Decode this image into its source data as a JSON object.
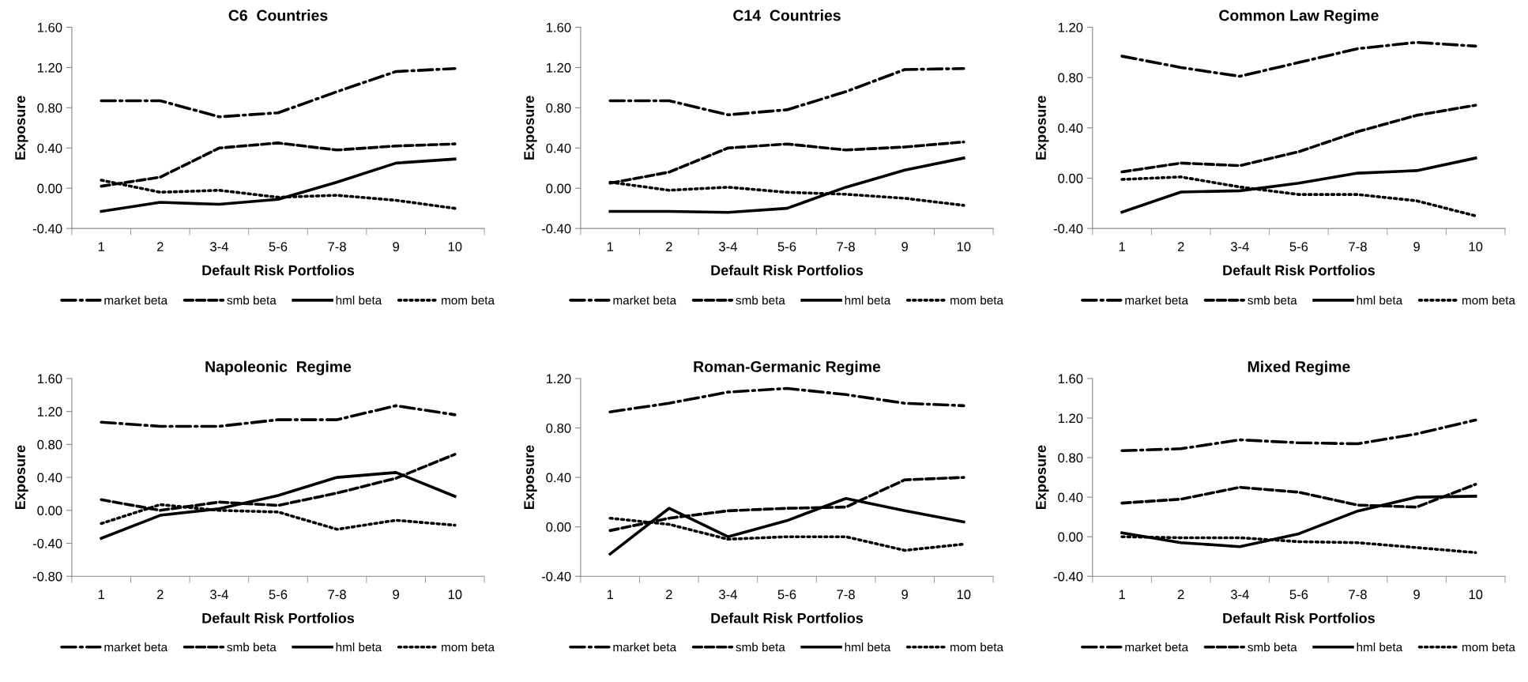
{
  "chart_data": [
    {
      "type": "line",
      "title": "C6  Countries",
      "xlabel": "Default Risk Portfolios",
      "ylabel": "Exposure",
      "categories": [
        "1",
        "2",
        "3-4",
        "5-6",
        "7-8",
        "9",
        "10"
      ],
      "ylim": [
        -0.4,
        1.6
      ],
      "yticks": [
        {
          "value": -0.4,
          "label": "-0.40"
        },
        {
          "value": 0,
          "label": "0.00"
        },
        {
          "value": 0.4,
          "label": "0.40"
        },
        {
          "value": 0.8,
          "label": "0.80"
        },
        {
          "value": 1.2,
          "label": "1.20"
        },
        {
          "value": 1.6,
          "label": "1.60"
        }
      ],
      "legend": "bottom",
      "grid": false,
      "series": [
        {
          "name": "market beta",
          "color": "#000000",
          "line_style": "dashdot",
          "values": [
            0.87,
            0.87,
            0.71,
            0.75,
            0.96,
            1.16,
            1.19
          ]
        },
        {
          "name": "smb beta",
          "color": "#000000",
          "line_style": "dashed",
          "values": [
            0.02,
            0.11,
            0.4,
            0.45,
            0.38,
            0.42,
            0.44
          ]
        },
        {
          "name": "hml beta",
          "color": "#000000",
          "line_style": "solid",
          "values": [
            -0.23,
            -0.14,
            -0.16,
            -0.11,
            0.06,
            0.25,
            0.29
          ]
        },
        {
          "name": "mom beta",
          "color": "#000000",
          "line_style": "dotted",
          "values": [
            0.08,
            -0.04,
            -0.02,
            -0.09,
            -0.07,
            -0.12,
            -0.2
          ]
        }
      ]
    },
    {
      "type": "line",
      "title": "C14  Countries",
      "xlabel": "Default Risk Portfolios",
      "ylabel": "Exposure",
      "categories": [
        "1",
        "2",
        "3-4",
        "5-6",
        "7-8",
        "9",
        "10"
      ],
      "ylim": [
        -0.4,
        1.6
      ],
      "yticks": [
        {
          "value": -0.4,
          "label": "-0.40"
        },
        {
          "value": 0,
          "label": "0.00"
        },
        {
          "value": 0.4,
          "label": "0.40"
        },
        {
          "value": 0.8,
          "label": "0.80"
        },
        {
          "value": 1.2,
          "label": "1.20"
        },
        {
          "value": 1.6,
          "label": "1.60"
        }
      ],
      "legend": "bottom",
      "grid": false,
      "series": [
        {
          "name": "market beta",
          "color": "#000000",
          "line_style": "dashdot",
          "values": [
            0.87,
            0.87,
            0.73,
            0.78,
            0.96,
            1.18,
            1.19
          ]
        },
        {
          "name": "smb beta",
          "color": "#000000",
          "line_style": "dashed",
          "values": [
            0.05,
            0.16,
            0.4,
            0.44,
            0.38,
            0.41,
            0.46
          ]
        },
        {
          "name": "hml beta",
          "color": "#000000",
          "line_style": "solid",
          "values": [
            -0.23,
            -0.23,
            -0.24,
            -0.2,
            0.01,
            0.18,
            0.3
          ]
        },
        {
          "name": "mom beta",
          "color": "#000000",
          "line_style": "dotted",
          "values": [
            0.06,
            -0.02,
            0.01,
            -0.04,
            -0.06,
            -0.1,
            -0.17
          ]
        }
      ]
    },
    {
      "type": "line",
      "title": "Common Law Regime",
      "xlabel": "Default Risk Portfolios",
      "ylabel": "Exposure",
      "categories": [
        "1",
        "2",
        "3-4",
        "5-6",
        "7-8",
        "9",
        "10"
      ],
      "ylim": [
        -0.4,
        1.2
      ],
      "yticks": [
        {
          "value": -0.4,
          "label": "-0.40"
        },
        {
          "value": 0,
          "label": "0.00"
        },
        {
          "value": 0.4,
          "label": "0.40"
        },
        {
          "value": 0.8,
          "label": "0.80"
        },
        {
          "value": 1.2,
          "label": "1.20"
        }
      ],
      "legend": "bottom",
      "grid": false,
      "series": [
        {
          "name": "market beta",
          "color": "#000000",
          "line_style": "dashdot",
          "values": [
            0.97,
            0.88,
            0.81,
            0.92,
            1.03,
            1.08,
            1.05
          ]
        },
        {
          "name": "smb beta",
          "color": "#000000",
          "line_style": "dashed",
          "values": [
            0.05,
            0.12,
            0.1,
            0.21,
            0.37,
            0.5,
            0.58
          ]
        },
        {
          "name": "hml beta",
          "color": "#000000",
          "line_style": "solid",
          "values": [
            -0.27,
            -0.11,
            -0.1,
            -0.04,
            0.04,
            0.06,
            0.16
          ]
        },
        {
          "name": "mom beta",
          "color": "#000000",
          "line_style": "dotted",
          "values": [
            -0.01,
            0.01,
            -0.07,
            -0.13,
            -0.13,
            -0.18,
            -0.3
          ]
        }
      ]
    },
    {
      "type": "line",
      "title": "Napoleonic  Regime",
      "xlabel": "Default Risk Portfolios",
      "ylabel": "Exposure",
      "categories": [
        "1",
        "2",
        "3-4",
        "5-6",
        "7-8",
        "9",
        "10"
      ],
      "ylim": [
        -0.8,
        1.6
      ],
      "yticks": [
        {
          "value": -0.8,
          "label": "-0.80"
        },
        {
          "value": -0.4,
          "label": "-0.40"
        },
        {
          "value": 0,
          "label": "0.00"
        },
        {
          "value": 0.4,
          "label": "0.40"
        },
        {
          "value": 0.8,
          "label": "0.80"
        },
        {
          "value": 1.2,
          "label": "1.20"
        },
        {
          "value": 1.6,
          "label": "1.60"
        }
      ],
      "legend": "bottom",
      "grid": false,
      "series": [
        {
          "name": "market beta",
          "color": "#000000",
          "line_style": "dashdot",
          "values": [
            1.07,
            1.02,
            1.02,
            1.1,
            1.1,
            1.27,
            1.16
          ]
        },
        {
          "name": "smb beta",
          "color": "#000000",
          "line_style": "dashed",
          "values": [
            0.13,
            0.0,
            0.1,
            0.06,
            0.21,
            0.39,
            0.68
          ]
        },
        {
          "name": "hml beta",
          "color": "#000000",
          "line_style": "solid",
          "values": [
            -0.34,
            -0.06,
            0.02,
            0.18,
            0.4,
            0.46,
            0.17
          ]
        },
        {
          "name": "mom beta",
          "color": "#000000",
          "line_style": "dotted",
          "values": [
            -0.16,
            0.07,
            0.0,
            -0.02,
            -0.23,
            -0.12,
            -0.18
          ]
        }
      ]
    },
    {
      "type": "line",
      "title": "Roman-Germanic Regime",
      "xlabel": "Default Risk Portfolios",
      "ylabel": "Exposure",
      "categories": [
        "1",
        "2",
        "3-4",
        "5-6",
        "7-8",
        "9",
        "10"
      ],
      "ylim": [
        -0.4,
        1.2
      ],
      "yticks": [
        {
          "value": -0.4,
          "label": "-0.40"
        },
        {
          "value": 0,
          "label": "0.00"
        },
        {
          "value": 0.4,
          "label": "0.40"
        },
        {
          "value": 0.8,
          "label": "0.80"
        },
        {
          "value": 1.2,
          "label": "1.20"
        }
      ],
      "legend": "bottom",
      "grid": false,
      "series": [
        {
          "name": "market beta",
          "color": "#000000",
          "line_style": "dashdot",
          "values": [
            0.93,
            1.0,
            1.09,
            1.12,
            1.07,
            1.0,
            0.98
          ]
        },
        {
          "name": "smb beta",
          "color": "#000000",
          "line_style": "dashed",
          "values": [
            -0.03,
            0.07,
            0.13,
            0.15,
            0.16,
            0.38,
            0.4
          ]
        },
        {
          "name": "hml beta",
          "color": "#000000",
          "line_style": "solid",
          "values": [
            -0.22,
            0.15,
            -0.08,
            0.05,
            0.23,
            0.13,
            0.04
          ]
        },
        {
          "name": "mom beta",
          "color": "#000000",
          "line_style": "dotted",
          "values": [
            0.07,
            0.02,
            -0.1,
            -0.08,
            -0.08,
            -0.19,
            -0.14
          ]
        }
      ]
    },
    {
      "type": "line",
      "title": "Mixed Regime",
      "xlabel": "Default Risk Portfolios",
      "ylabel": "Exposure",
      "categories": [
        "1",
        "2",
        "3-4",
        "5-6",
        "7-8",
        "9",
        "10"
      ],
      "ylim": [
        -0.4,
        1.6
      ],
      "yticks": [
        {
          "value": -0.4,
          "label": "-0.40"
        },
        {
          "value": 0,
          "label": "0.00"
        },
        {
          "value": 0.4,
          "label": "0.40"
        },
        {
          "value": 0.8,
          "label": "0.80"
        },
        {
          "value": 1.2,
          "label": "1.20"
        },
        {
          "value": 1.6,
          "label": "1.60"
        }
      ],
      "legend": "bottom",
      "grid": false,
      "series": [
        {
          "name": "market beta",
          "color": "#000000",
          "line_style": "dashdot",
          "values": [
            0.87,
            0.89,
            0.98,
            0.95,
            0.94,
            1.04,
            1.18
          ]
        },
        {
          "name": "smb beta",
          "color": "#000000",
          "line_style": "dashed",
          "values": [
            0.34,
            0.38,
            0.5,
            0.45,
            0.32,
            0.3,
            0.53
          ]
        },
        {
          "name": "hml beta",
          "color": "#000000",
          "line_style": "solid",
          "values": [
            0.04,
            -0.06,
            -0.1,
            0.03,
            0.26,
            0.4,
            0.41
          ]
        },
        {
          "name": "mom beta",
          "color": "#000000",
          "line_style": "dotted",
          "values": [
            0.0,
            -0.01,
            -0.01,
            -0.05,
            -0.06,
            -0.11,
            -0.16
          ]
        }
      ]
    }
  ]
}
